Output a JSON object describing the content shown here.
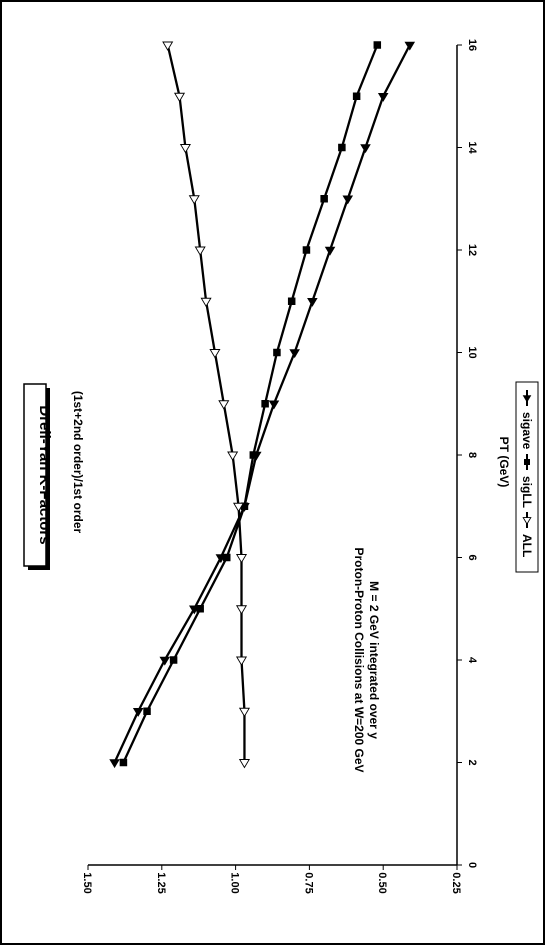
{
  "chart_data": {
    "type": "line",
    "title": "Drell-Yan K-Factors",
    "annotation_lines": [
      "Proton-Proton Collisions at W=200 GeV",
      "M = 2 GeV  integrated over y"
    ],
    "xlabel": "PT (GeV)",
    "ylabel": "(1st+2nd order)/1st order",
    "xlim": [
      0,
      16
    ],
    "ylim": [
      0.25,
      1.5
    ],
    "x_ticks": [
      "0",
      "2",
      "4",
      "6",
      "8",
      "10",
      "12",
      "14",
      "16"
    ],
    "y_ticks": [
      "0.25",
      "0.50",
      "0.75",
      "1.00",
      "1.25",
      "1.50"
    ],
    "grid": false,
    "legend_position": "bottom",
    "orientation": "rotated 90 degrees clockwise",
    "x": [
      2,
      3,
      4,
      5,
      6,
      7,
      8,
      9,
      10,
      11,
      12,
      13,
      14,
      15,
      16
    ],
    "series": [
      {
        "name": "sigave",
        "marker": "filled-triangle",
        "values": [
          1.41,
          1.33,
          1.24,
          1.14,
          1.05,
          0.97,
          0.93,
          0.87,
          0.8,
          0.74,
          0.68,
          0.62,
          0.56,
          0.5,
          0.41
        ]
      },
      {
        "name": "sigLL",
        "marker": "filled-square",
        "values": [
          1.38,
          1.3,
          1.21,
          1.12,
          1.03,
          0.97,
          0.94,
          0.9,
          0.86,
          0.81,
          0.76,
          0.7,
          0.64,
          0.59,
          0.52
        ]
      },
      {
        "name": "ALL",
        "marker": "open-triangle",
        "values": [
          0.97,
          0.97,
          0.98,
          0.98,
          0.98,
          0.99,
          1.01,
          1.04,
          1.07,
          1.1,
          1.12,
          1.14,
          1.17,
          1.19,
          1.23
        ]
      }
    ]
  }
}
